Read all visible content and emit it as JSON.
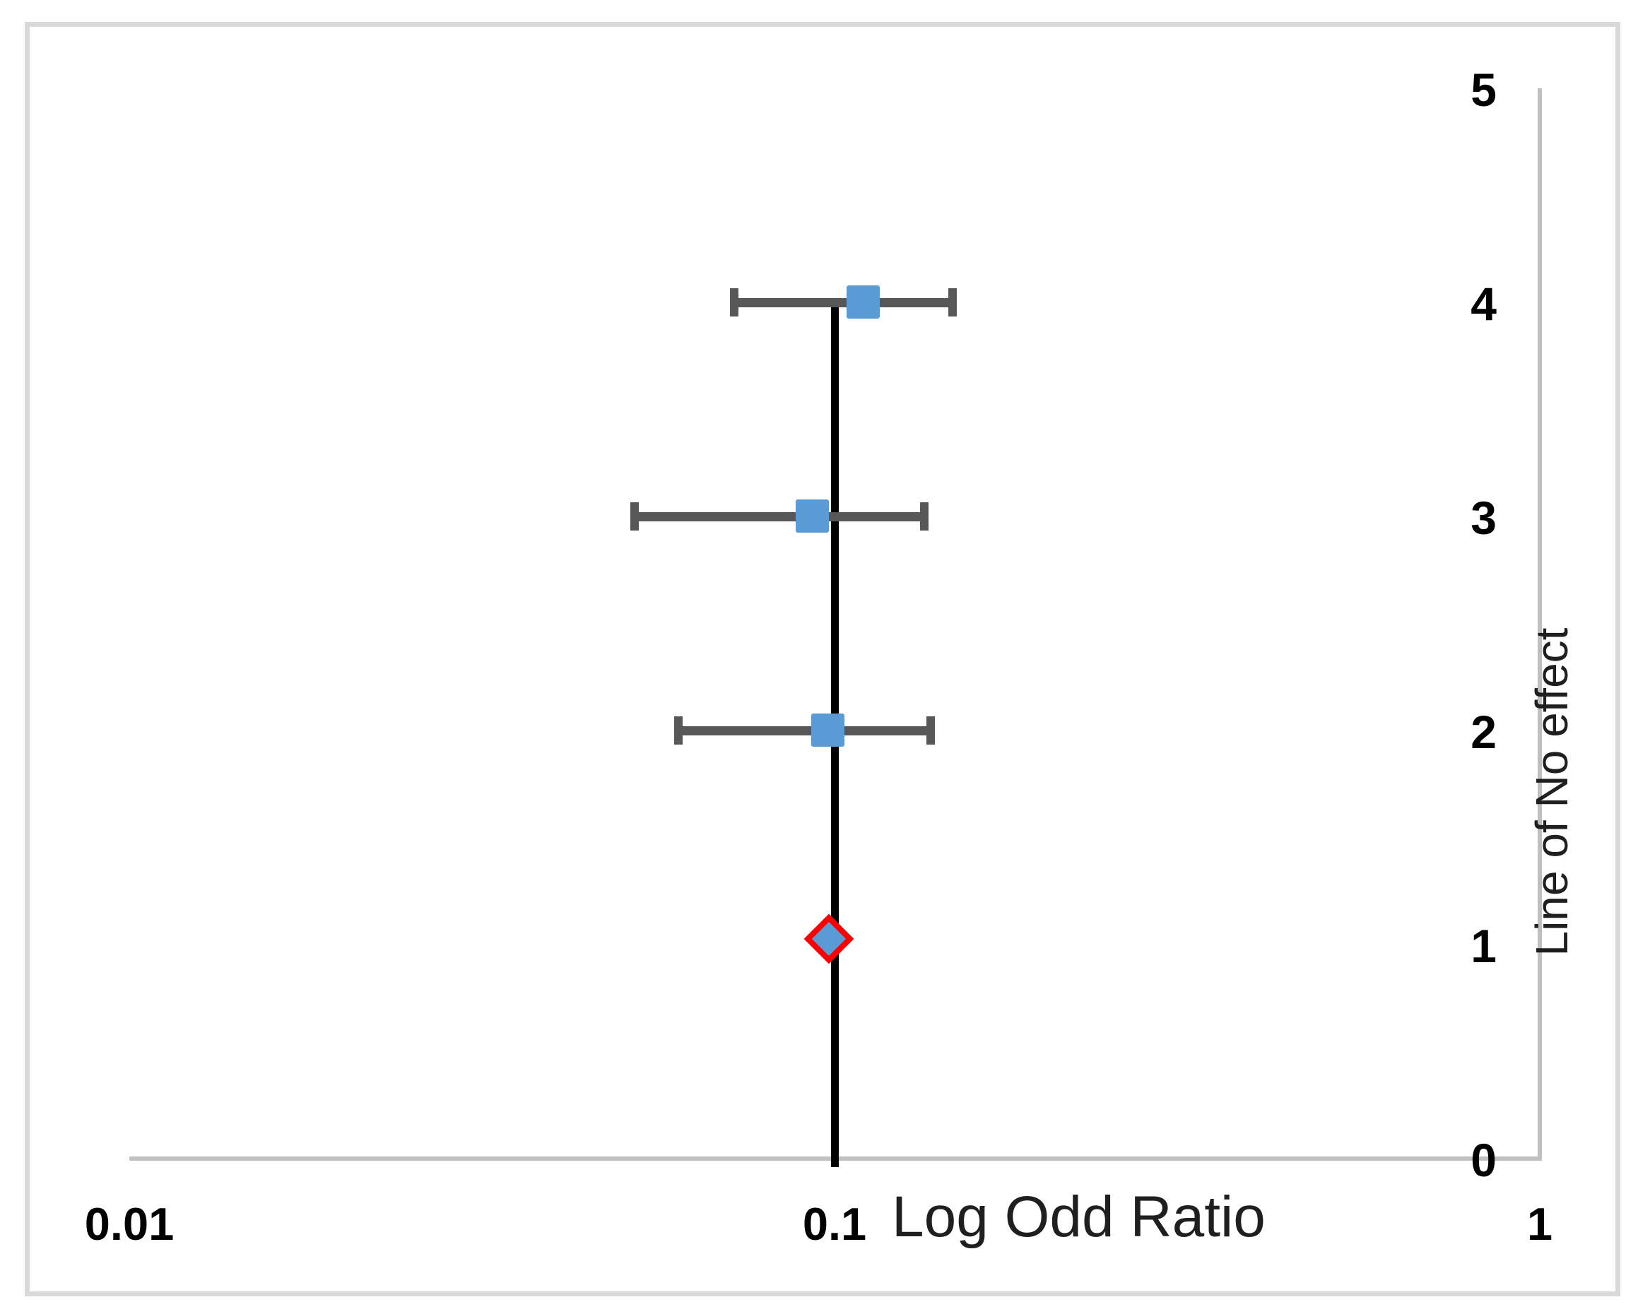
{
  "figure": {
    "kind": "forest-plot",
    "background": "#ffffff",
    "frame_border_color": "#D9D9D9"
  },
  "chart_data": {
    "type": "scatter",
    "subtype": "forest-plot",
    "title": "",
    "xlabel": "Log Odd Ratio",
    "x_axis": {
      "label": "Log Odd Ratio",
      "scale": "log",
      "range": [
        0.01,
        1
      ],
      "tick_labels": [
        "0.01",
        "0.1",
        "1"
      ],
      "tick_values": [
        0.01,
        0.1,
        1
      ]
    },
    "y_axis": {
      "range": [
        0,
        5
      ],
      "side": "right",
      "tick_labels": [
        "0",
        "1",
        "2",
        "3",
        "4",
        "5"
      ],
      "tick_values": [
        0,
        1,
        2,
        3,
        4,
        5
      ]
    },
    "right_label": "Line of No effect",
    "reference_line": {
      "x": 0.1,
      "meaning": "Line of No effect"
    },
    "studies": [
      {
        "y": 4,
        "odds_ratio": 0.11,
        "ci_low": 0.072,
        "ci_high": 0.147,
        "marker": "square"
      },
      {
        "y": 3,
        "odds_ratio": 0.093,
        "ci_low": 0.052,
        "ci_high": 0.134,
        "marker": "square"
      },
      {
        "y": 2,
        "odds_ratio": 0.098,
        "ci_low": 0.06,
        "ci_high": 0.137,
        "marker": "square"
      }
    ],
    "summary": {
      "y": 1,
      "odds_ratio": 0.1,
      "marker": "diamond"
    },
    "colors": {
      "marker_fill": "#5B9BD5",
      "error_bar": "#575757",
      "reference_line": "#000000",
      "summary_border": "#FF0000",
      "axis_line": "#BFBFBF",
      "tick_text": "#000000",
      "title_text": "#1f1f1f"
    },
    "grid": false,
    "legend": false
  }
}
